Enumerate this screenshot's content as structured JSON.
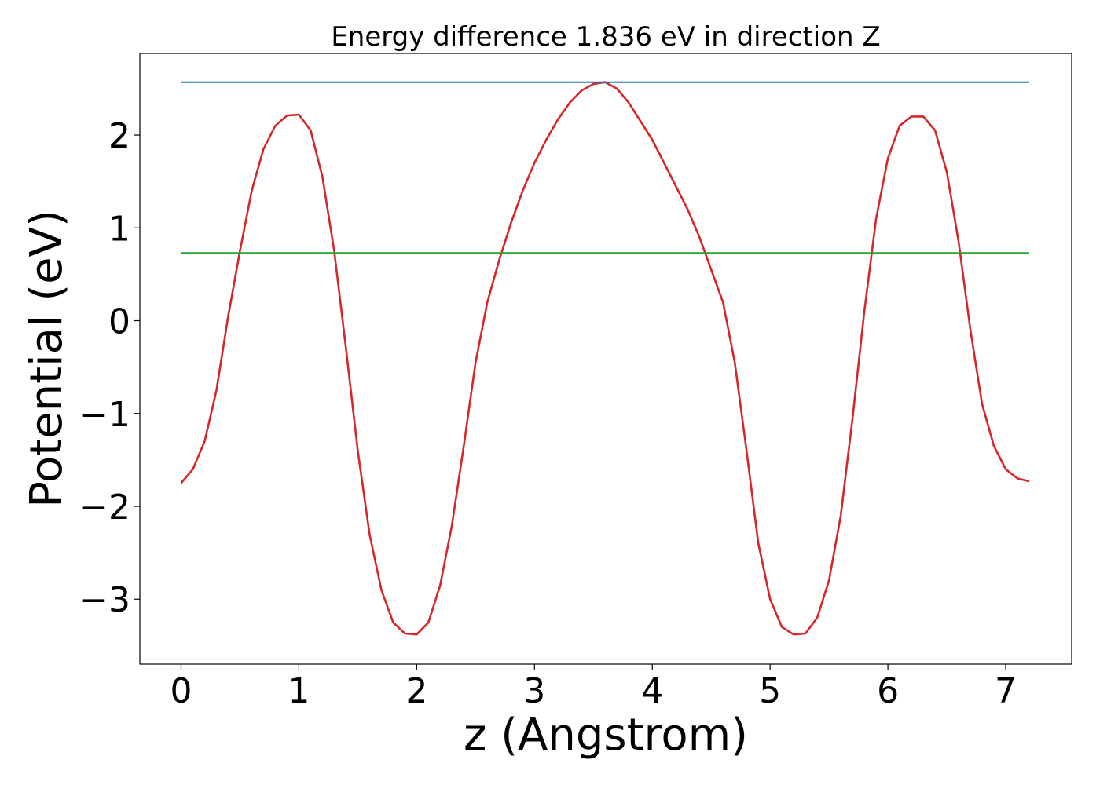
{
  "chart_data": {
    "type": "line",
    "title": "Energy difference 1.836 eV in direction Z",
    "xlabel": "z (Angstrom)",
    "ylabel": "Potential (eV)",
    "xlim": [
      -0.35,
      7.56
    ],
    "ylim": [
      -3.7,
      2.88
    ],
    "xticks": [
      0,
      1,
      2,
      3,
      4,
      5,
      6,
      7
    ],
    "yticks": [
      -3,
      -2,
      -1,
      0,
      1,
      2
    ],
    "xtick_labels": [
      "0",
      "1",
      "2",
      "3",
      "4",
      "5",
      "6",
      "7"
    ],
    "ytick_labels": [
      "−3",
      "−2",
      "−1",
      "0",
      "1",
      "2"
    ],
    "grid": false,
    "series": [
      {
        "color": "#d62728",
        "x": [
          0,
          0.1,
          0.2,
          0.3,
          0.4,
          0.5,
          0.6,
          0.7,
          0.8,
          0.9,
          1.0,
          1.1,
          1.2,
          1.3,
          1.4,
          1.5,
          1.6,
          1.7,
          1.8,
          1.9,
          2.0,
          2.1,
          2.2,
          2.3,
          2.4,
          2.5,
          2.6,
          2.7,
          2.8,
          2.9,
          3.0,
          3.1,
          3.2,
          3.3,
          3.4,
          3.5,
          3.6,
          3.7,
          3.8,
          3.9,
          4.0,
          4.1,
          4.2,
          4.3,
          4.4,
          4.5,
          4.6,
          4.7,
          4.8,
          4.9,
          5.0,
          5.1,
          5.2,
          5.3,
          5.4,
          5.5,
          5.6,
          5.7,
          5.8,
          5.9,
          6.0,
          6.1,
          6.2,
          6.3,
          6.4,
          6.5,
          6.6,
          6.7,
          6.8,
          6.9,
          7.0,
          7.1,
          7.2
        ],
        "y": [
          -1.75,
          -1.6,
          -1.3,
          -0.75,
          0.05,
          0.75,
          1.4,
          1.85,
          2.1,
          2.21,
          2.22,
          2.05,
          1.55,
          0.75,
          -0.3,
          -1.4,
          -2.3,
          -2.9,
          -3.25,
          -3.37,
          -3.38,
          -3.25,
          -2.85,
          -2.2,
          -1.35,
          -0.45,
          0.2,
          0.65,
          1.05,
          1.4,
          1.7,
          1.95,
          2.17,
          2.35,
          2.48,
          2.55,
          2.57,
          2.5,
          2.35,
          2.15,
          1.95,
          1.7,
          1.45,
          1.2,
          0.9,
          0.55,
          0.2,
          -0.45,
          -1.4,
          -2.4,
          -3.0,
          -3.3,
          -3.38,
          -3.37,
          -3.2,
          -2.8,
          -2.1,
          -1.05,
          0.1,
          1.1,
          1.75,
          2.1,
          2.2,
          2.2,
          2.05,
          1.6,
          0.85,
          -0.1,
          -0.9,
          -1.35,
          -1.6,
          -1.7,
          -1.73
        ]
      },
      {
        "color": "#1f77b4",
        "x": [
          0,
          7.2
        ],
        "y": [
          2.57,
          2.57
        ]
      },
      {
        "color": "#2ca02c",
        "x": [
          0,
          7.2
        ],
        "y": [
          0.73,
          0.73
        ]
      }
    ]
  }
}
